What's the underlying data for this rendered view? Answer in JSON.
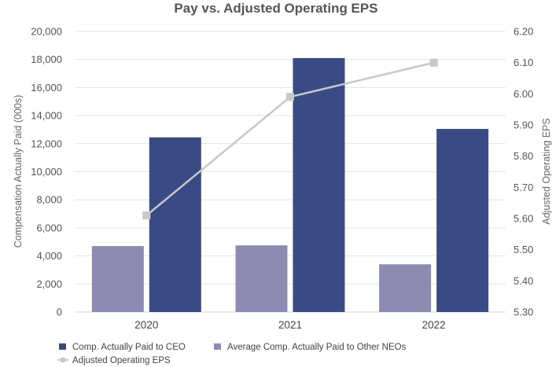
{
  "chart_data": {
    "type": "bar",
    "title": "Pay vs. Adjusted Operating EPS",
    "categories": [
      "2020",
      "2021",
      "2022"
    ],
    "ylabel": "Compensation Actually Paid (000s)",
    "y2label": "Adjusted Operating EPS",
    "ylim": [
      0,
      20000
    ],
    "y2lim": [
      5.3,
      6.2
    ],
    "yticks": [
      "0",
      "2,000",
      "4,000",
      "6,000",
      "8,000",
      "10,000",
      "12,000",
      "14,000",
      "16,000",
      "18,000",
      "20,000"
    ],
    "y2ticks": [
      "5.30",
      "5.40",
      "5.50",
      "5.60",
      "5.70",
      "5.80",
      "5.90",
      "6.00",
      "6.10",
      "6.20"
    ],
    "grid": true,
    "legend_position": "bottom",
    "series": [
      {
        "name": "Average Comp. Actually Paid to Other NEOs",
        "kind": "bar",
        "axis": "left",
        "color": "#8e8bb2",
        "values": [
          4700,
          4750,
          3400
        ]
      },
      {
        "name": "Comp. Actually Paid to CEO",
        "kind": "bar",
        "axis": "left",
        "color": "#3a4a85",
        "values": [
          12450,
          18100,
          13050
        ]
      },
      {
        "name": "Adjusted Operating EPS",
        "kind": "line",
        "axis": "right",
        "color": "#c8c8c8",
        "values": [
          5.61,
          5.99,
          6.1
        ]
      }
    ],
    "legend": [
      {
        "label": "Comp. Actually Paid to CEO",
        "color": "#3a4a85",
        "marker": "square"
      },
      {
        "label": "Average Comp. Actually Paid to Other NEOs",
        "color": "#8e8bb2",
        "marker": "square"
      },
      {
        "label": "Adjusted Operating EPS",
        "color": "#c8c8c8",
        "marker": "line-square"
      }
    ]
  }
}
